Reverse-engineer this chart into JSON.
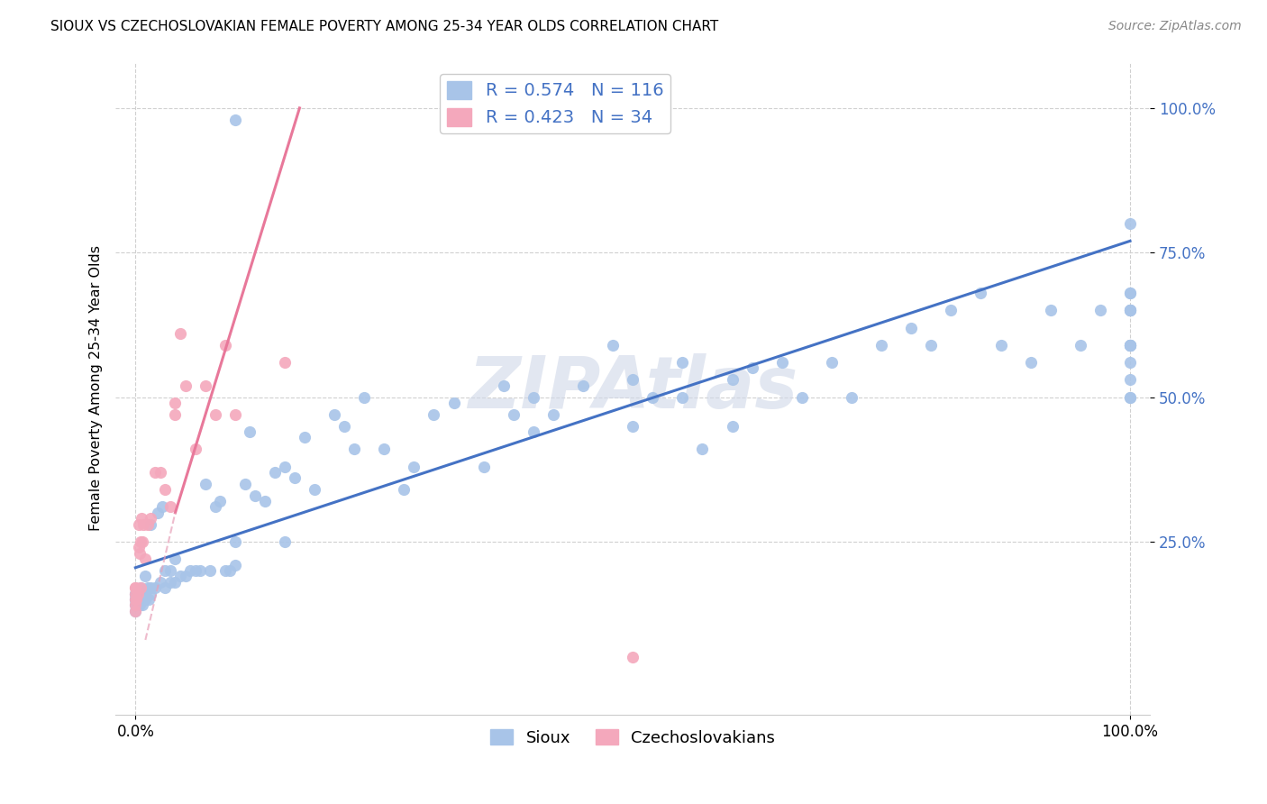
{
  "title": "SIOUX VS CZECHOSLOVAKIAN FEMALE POVERTY AMONG 25-34 YEAR OLDS CORRELATION CHART",
  "source": "Source: ZipAtlas.com",
  "ylabel": "Female Poverty Among 25-34 Year Olds",
  "xlim": [
    -0.02,
    1.02
  ],
  "ylim": [
    -0.05,
    1.08
  ],
  "ytick_positions": [
    0.25,
    0.5,
    0.75,
    1.0
  ],
  "ytick_labels": [
    "25.0%",
    "50.0%",
    "75.0%",
    "100.0%"
  ],
  "xtick_positions": [
    0.0,
    1.0
  ],
  "xtick_labels": [
    "0.0%",
    "100.0%"
  ],
  "sioux_color": "#a8c4e8",
  "czech_color": "#f4a8bc",
  "sioux_line_color": "#4472c4",
  "czech_line_color": "#e8789a",
  "czech_line_dash": "#e8a0b8",
  "sioux_R": 0.574,
  "sioux_N": 116,
  "czech_R": 0.423,
  "czech_N": 34,
  "legend_text_color": "#4472c4",
  "legend_label1": "Sioux",
  "legend_label2": "Czechoslovakians",
  "watermark": "ZIPAtlas",
  "sioux_line": {
    "x0": 0.0,
    "y0": 0.205,
    "x1": 1.0,
    "y1": 0.77
  },
  "czech_line_solid": {
    "x0": 0.04,
    "y0": 0.3,
    "x1": 0.165,
    "y1": 1.0
  },
  "czech_line_dashed": {
    "x0": 0.01,
    "y0": 0.08,
    "x1": 0.165,
    "y1": 1.0
  },
  "sioux_x": [
    0.0,
    0.0,
    0.0,
    0.0,
    0.0,
    0.0,
    0.002,
    0.002,
    0.003,
    0.003,
    0.004,
    0.004,
    0.005,
    0.005,
    0.005,
    0.006,
    0.007,
    0.008,
    0.01,
    0.01,
    0.01,
    0.012,
    0.013,
    0.015,
    0.015,
    0.015,
    0.02,
    0.022,
    0.025,
    0.027,
    0.03,
    0.03,
    0.035,
    0.035,
    0.04,
    0.04,
    0.045,
    0.05,
    0.055,
    0.06,
    0.065,
    0.07,
    0.075,
    0.08,
    0.085,
    0.09,
    0.095,
    0.1,
    0.1,
    0.1,
    0.11,
    0.115,
    0.12,
    0.13,
    0.14,
    0.15,
    0.15,
    0.16,
    0.17,
    0.18,
    0.2,
    0.21,
    0.22,
    0.23,
    0.25,
    0.27,
    0.28,
    0.3,
    0.32,
    0.35,
    0.37,
    0.38,
    0.4,
    0.4,
    0.42,
    0.45,
    0.48,
    0.5,
    0.5,
    0.52,
    0.55,
    0.55,
    0.57,
    0.6,
    0.6,
    0.62,
    0.65,
    0.67,
    0.7,
    0.72,
    0.75,
    0.78,
    0.8,
    0.82,
    0.85,
    0.87,
    0.9,
    0.92,
    0.95,
    0.97,
    1.0,
    1.0,
    1.0,
    1.0,
    1.0,
    1.0,
    1.0,
    1.0,
    1.0,
    1.0,
    1.0,
    1.0,
    1.0,
    1.0,
    1.0,
    1.0
  ],
  "sioux_y": [
    0.13,
    0.14,
    0.15,
    0.15,
    0.16,
    0.16,
    0.14,
    0.15,
    0.15,
    0.16,
    0.14,
    0.16,
    0.15,
    0.16,
    0.17,
    0.16,
    0.14,
    0.16,
    0.15,
    0.16,
    0.19,
    0.17,
    0.15,
    0.16,
    0.17,
    0.28,
    0.17,
    0.3,
    0.18,
    0.31,
    0.17,
    0.2,
    0.18,
    0.2,
    0.18,
    0.22,
    0.19,
    0.19,
    0.2,
    0.2,
    0.2,
    0.35,
    0.2,
    0.31,
    0.32,
    0.2,
    0.2,
    0.21,
    0.25,
    0.98,
    0.35,
    0.44,
    0.33,
    0.32,
    0.37,
    0.25,
    0.38,
    0.36,
    0.43,
    0.34,
    0.47,
    0.45,
    0.41,
    0.5,
    0.41,
    0.34,
    0.38,
    0.47,
    0.49,
    0.38,
    0.52,
    0.47,
    0.44,
    0.5,
    0.47,
    0.52,
    0.59,
    0.45,
    0.53,
    0.5,
    0.5,
    0.56,
    0.41,
    0.53,
    0.45,
    0.55,
    0.56,
    0.5,
    0.56,
    0.5,
    0.59,
    0.62,
    0.59,
    0.65,
    0.68,
    0.59,
    0.56,
    0.65,
    0.59,
    0.65,
    0.68,
    0.5,
    0.5,
    0.53,
    0.56,
    0.59,
    0.65,
    0.68,
    0.59,
    0.65,
    0.59,
    0.8,
    0.59,
    0.65,
    0.59,
    0.65
  ],
  "czech_x": [
    0.0,
    0.0,
    0.0,
    0.0,
    0.0,
    0.0,
    0.001,
    0.002,
    0.003,
    0.003,
    0.004,
    0.005,
    0.005,
    0.006,
    0.007,
    0.008,
    0.01,
    0.012,
    0.015,
    0.02,
    0.025,
    0.03,
    0.035,
    0.04,
    0.04,
    0.045,
    0.05,
    0.06,
    0.07,
    0.08,
    0.09,
    0.1,
    0.15,
    0.5
  ],
  "czech_y": [
    0.13,
    0.14,
    0.15,
    0.16,
    0.17,
    0.17,
    0.15,
    0.16,
    0.24,
    0.28,
    0.23,
    0.17,
    0.25,
    0.29,
    0.25,
    0.28,
    0.22,
    0.28,
    0.29,
    0.37,
    0.37,
    0.34,
    0.31,
    0.47,
    0.49,
    0.61,
    0.52,
    0.41,
    0.52,
    0.47,
    0.59,
    0.47,
    0.56,
    0.05
  ]
}
